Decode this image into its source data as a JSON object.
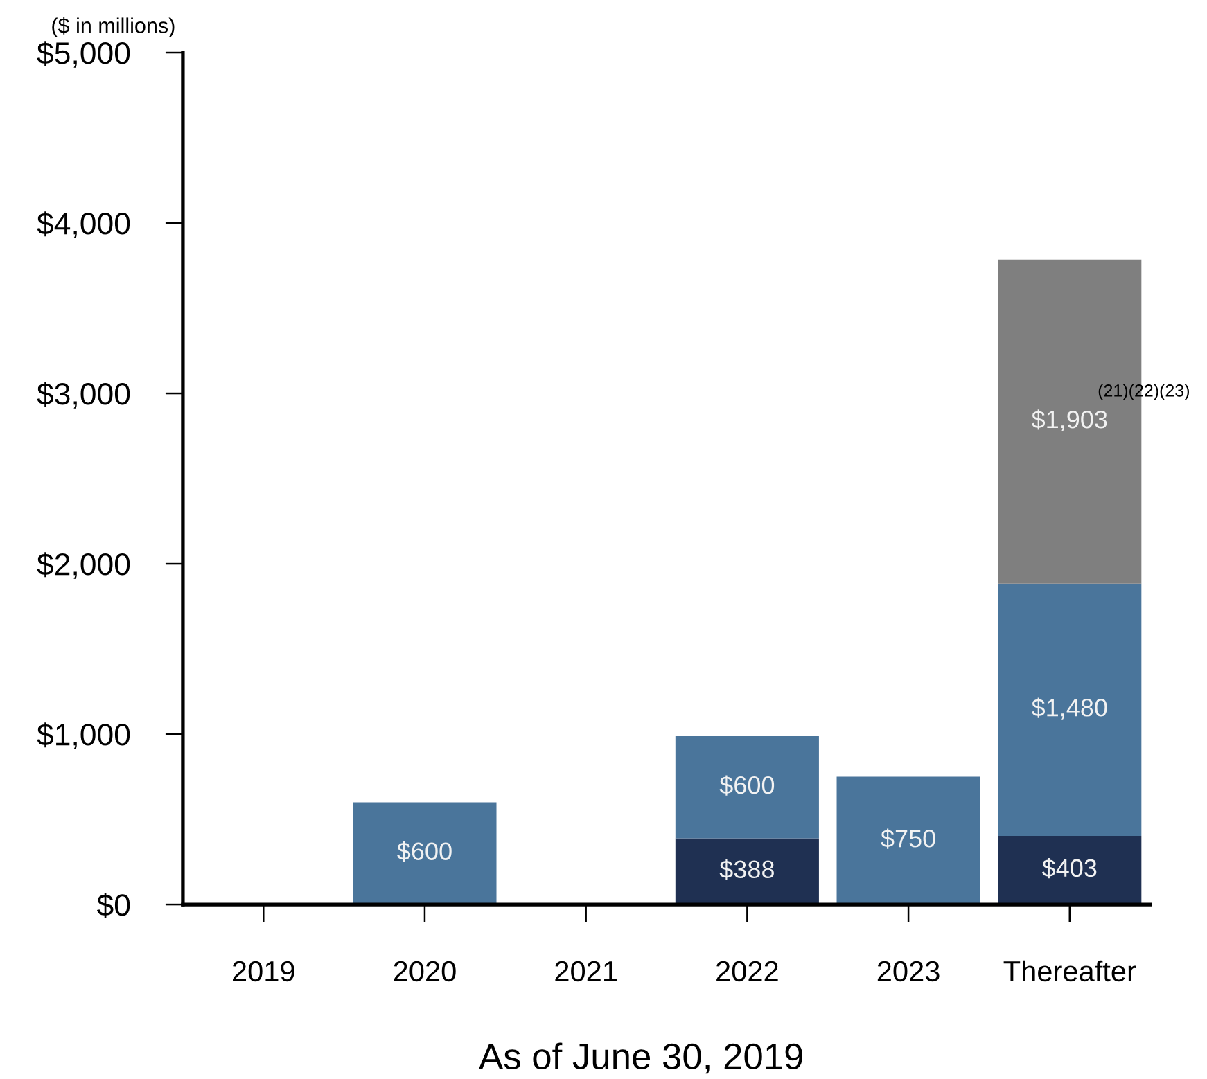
{
  "chart_data": {
    "type": "bar",
    "stacked": true,
    "ylabel": "($ in millions)",
    "xlabel": "As of June 30, 2019",
    "categories": [
      "2019",
      "2020",
      "2021",
      "2022",
      "2023",
      "Thereafter"
    ],
    "series": [
      {
        "color": "#1f3052",
        "values": [
          null,
          null,
          null,
          388,
          null,
          403
        ],
        "value_labels": [
          null,
          null,
          null,
          "$388",
          null,
          "$403"
        ]
      },
      {
        "color": "#4a759b",
        "values": [
          null,
          600,
          null,
          600,
          750,
          1480
        ],
        "value_labels": [
          null,
          "$600",
          null,
          "$600",
          "$750",
          "$1,480"
        ]
      },
      {
        "color": "#7f7f7f",
        "values": [
          null,
          null,
          null,
          null,
          null,
          1903
        ],
        "value_labels": [
          null,
          null,
          null,
          null,
          null,
          "$1,903"
        ]
      }
    ],
    "ylim": [
      0,
      5000
    ],
    "yticks": [
      {
        "value": 0,
        "label": "$0"
      },
      {
        "value": 1000,
        "label": "$1,000"
      },
      {
        "value": 2000,
        "label": "$2,000"
      },
      {
        "value": 3000,
        "label": "$3,000"
      },
      {
        "value": 4000,
        "label": "$4,000"
      },
      {
        "value": 5000,
        "label": "$5,000"
      }
    ],
    "annotations": [
      "(21)(22)(23)"
    ]
  }
}
